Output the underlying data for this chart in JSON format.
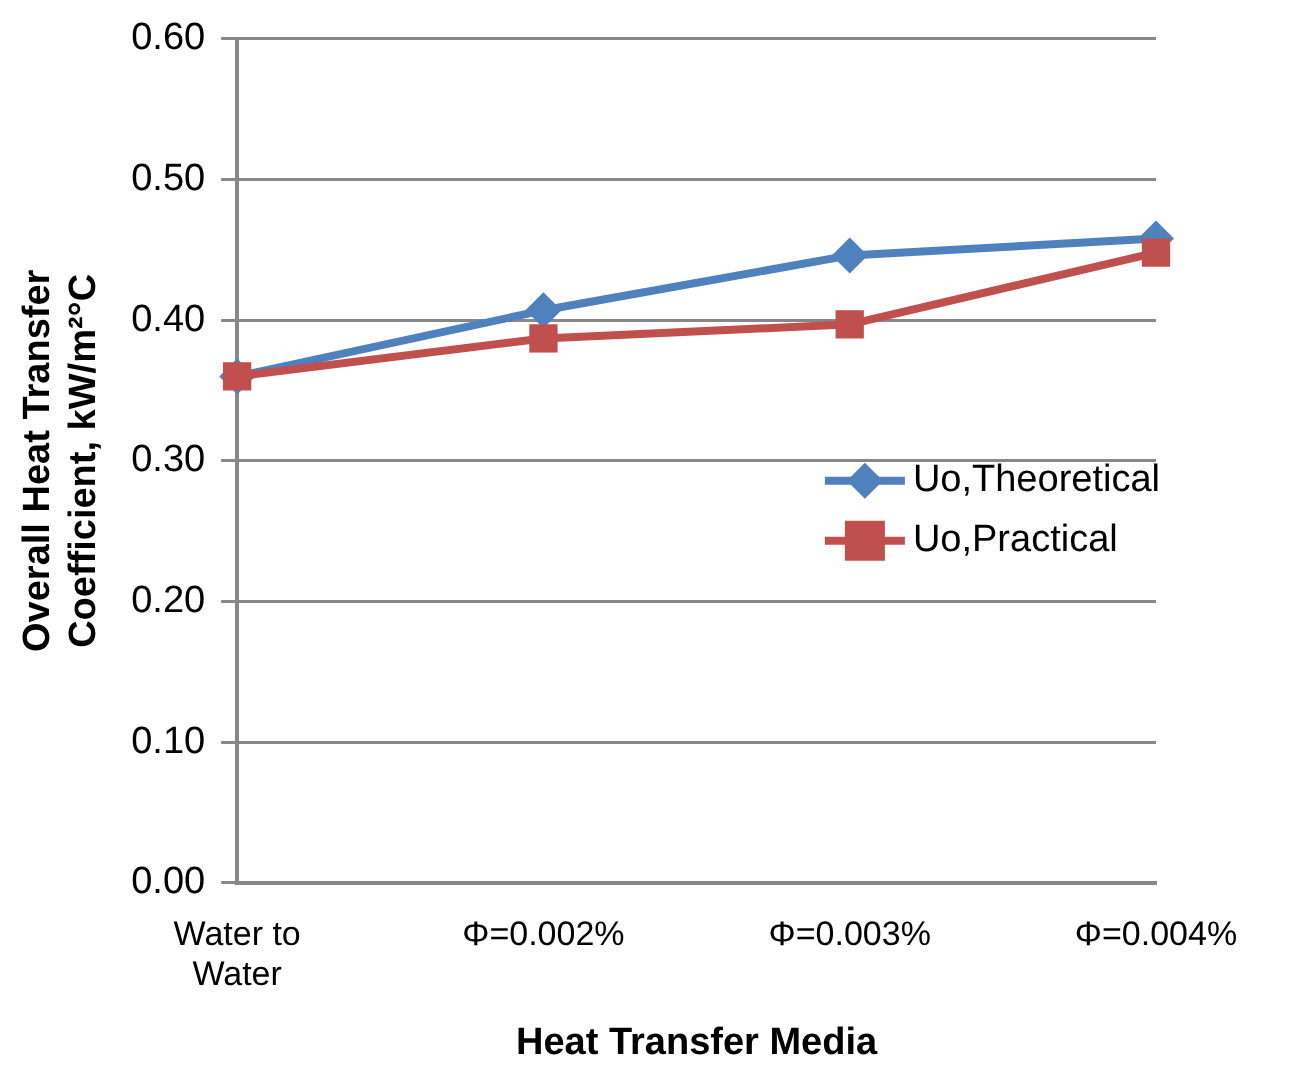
{
  "chart_data": {
    "type": "line",
    "xlabel": "Heat Transfer Media",
    "ylabel": "Overall Heat Transfer\nCoefficient, kW/m²°C",
    "categories": [
      "Water to\nWater",
      "Φ=0.002%",
      "Φ=0.003%",
      "Φ=0.004%"
    ],
    "series": [
      {
        "name": "Uo,Theoretical",
        "color": "#4f81bd",
        "marker": "diamond",
        "values": [
          0.36,
          0.407,
          0.446,
          0.458
        ]
      },
      {
        "name": "Uo,Practical",
        "color": "#c0504d",
        "marker": "square",
        "values": [
          0.36,
          0.387,
          0.397,
          0.448
        ]
      }
    ],
    "ylim": [
      0,
      0.6
    ],
    "yticks": [
      {
        "value": 0,
        "label": "0.00"
      },
      {
        "value": 0.1,
        "label": "0.10"
      },
      {
        "value": 0.2,
        "label": "0.20"
      },
      {
        "value": 0.3,
        "label": "0.30"
      },
      {
        "value": 0.4,
        "label": "0.40"
      },
      {
        "value": 0.5,
        "label": "0.50"
      },
      {
        "value": 0.6,
        "label": "0.60"
      }
    ],
    "grid": "y",
    "legend": "right",
    "line_style": "solid"
  }
}
